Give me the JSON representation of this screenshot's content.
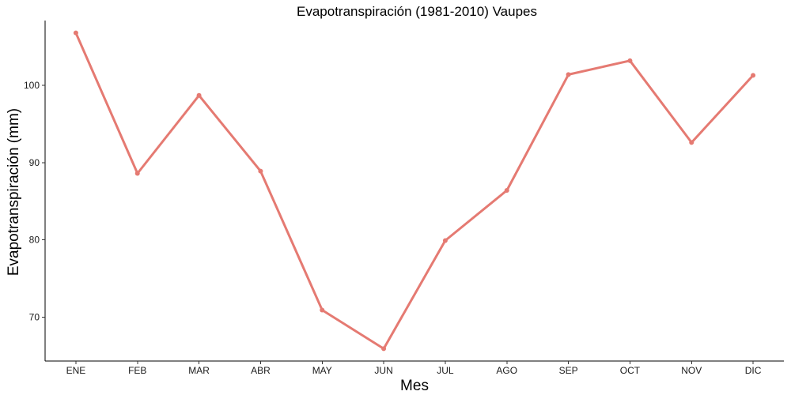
{
  "chart_data": {
    "type": "line",
    "title": "Evapotranspiración (1981-2010)  Vaupes",
    "xlabel": "Mes",
    "ylabel": "Evapotranspiración (mm)",
    "categories": [
      "ENE",
      "FEB",
      "MAR",
      "ABR",
      "MAY",
      "JUN",
      "JUL",
      "AGO",
      "SEP",
      "OCT",
      "NOV",
      "DIC"
    ],
    "series": [
      {
        "values": [
          106.8,
          88.6,
          98.7,
          88.9,
          70.9,
          65.9,
          79.9,
          86.4,
          101.4,
          103.2,
          92.6,
          101.3
        ],
        "color": "#E57A72"
      }
    ],
    "yticks": [
      70,
      80,
      90,
      100
    ],
    "ylim": [
      64.3,
      108.4
    ],
    "grid": false,
    "legend": "none"
  }
}
